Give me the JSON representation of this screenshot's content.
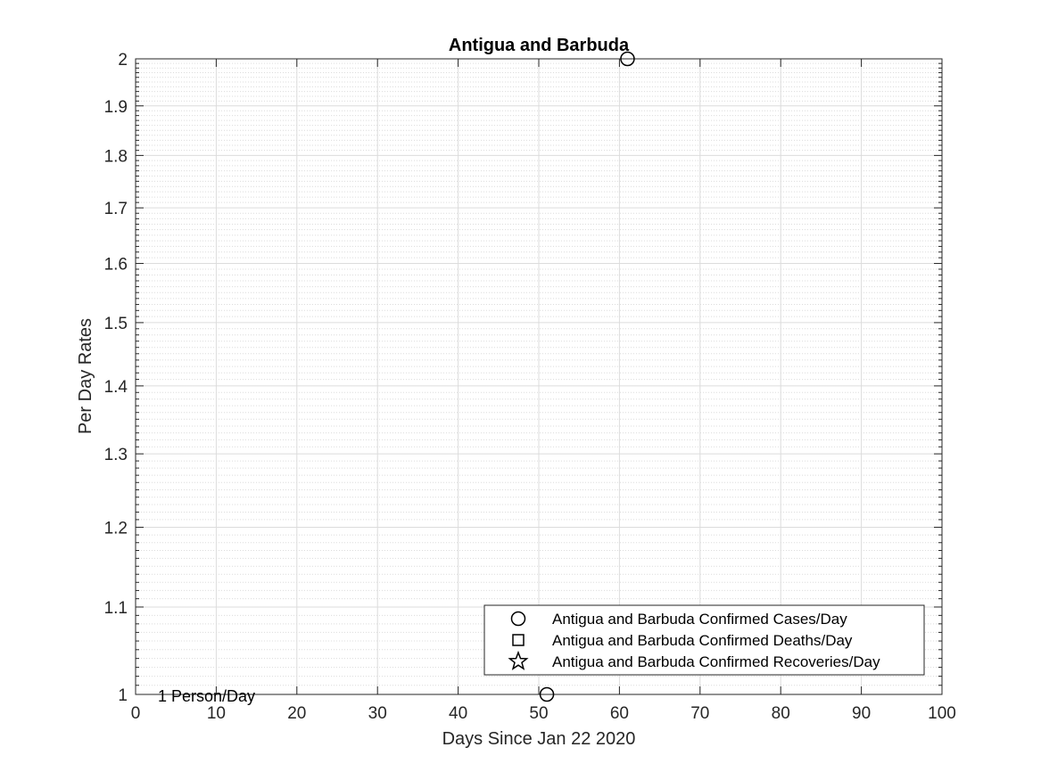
{
  "chart_data": {
    "type": "scatter",
    "title": "Antigua and Barbuda",
    "xlabel": "Days Since Jan 22 2020",
    "ylabel": "Per Day Rates",
    "xlim": [
      0,
      100
    ],
    "ylim": [
      1,
      2
    ],
    "yscale": "log",
    "grid": true,
    "minor_grid": true,
    "x_ticks": [
      0,
      10,
      20,
      30,
      40,
      50,
      60,
      70,
      80,
      90,
      100
    ],
    "y_ticks": [
      1,
      1.1,
      1.2,
      1.3,
      1.4,
      1.5,
      1.6,
      1.7,
      1.8,
      1.9,
      2
    ],
    "legend_position": "bottom-right",
    "series": [
      {
        "name": "Antigua and Barbuda Confirmed Cases/Day",
        "marker": "circle",
        "points": [
          {
            "x": 51,
            "y": 1
          },
          {
            "x": 61,
            "y": 2
          }
        ]
      },
      {
        "name": "Antigua and Barbuda Confirmed Deaths/Day",
        "marker": "square",
        "points": []
      },
      {
        "name": "Antigua and Barbuda Confirmed Recoveries/Day",
        "marker": "star",
        "points": []
      }
    ],
    "annotation": {
      "text": "1 Person/Day",
      "x": 1,
      "y": 1
    }
  },
  "colors": {
    "marker": "#000000",
    "grid": "#dcdcdc",
    "axis": "#262626"
  }
}
